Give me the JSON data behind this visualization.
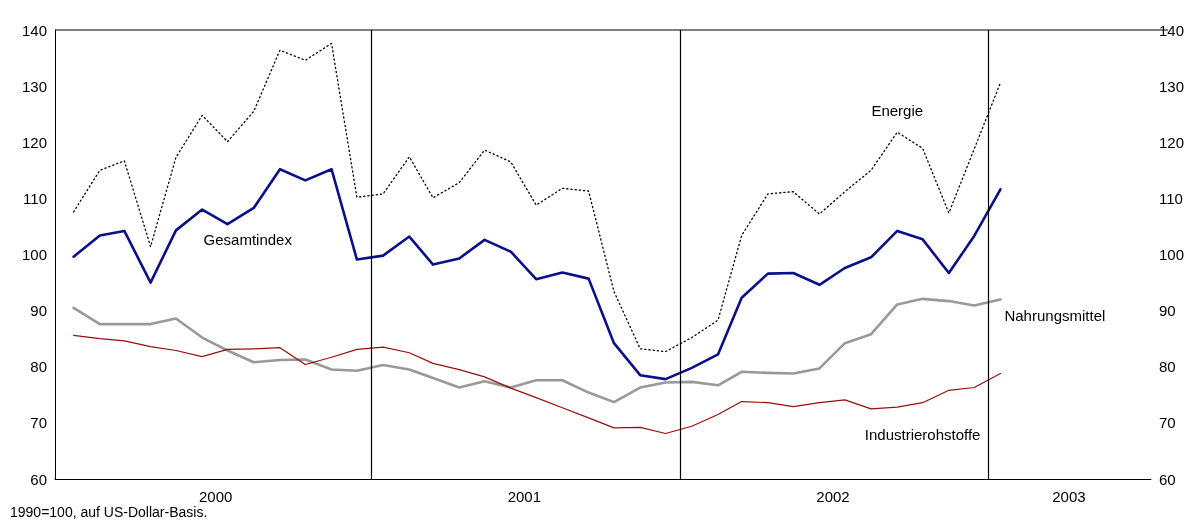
{
  "chart_data": {
    "type": "line",
    "x": [
      "2000-01-15",
      "2000-02-15",
      "2000-03-15",
      "2000-04-15",
      "2000-05-15",
      "2000-06-15",
      "2000-07-15",
      "2000-08-15",
      "2000-09-15",
      "2000-10-15",
      "2000-11-15",
      "2000-12-15",
      "2001-01-15",
      "2001-02-15",
      "2001-03-15",
      "2001-04-15",
      "2001-05-15",
      "2001-06-15",
      "2001-07-15",
      "2001-08-15",
      "2001-09-15",
      "2001-10-15",
      "2001-11-15",
      "2001-12-15",
      "2002-01-15",
      "2002-02-15",
      "2002-03-15",
      "2002-04-15",
      "2002-05-15",
      "2002-06-15",
      "2002-07-15",
      "2002-08-15",
      "2002-09-15",
      "2002-10-15",
      "2002-11-15",
      "2002-12-15",
      "2003-01-15"
    ],
    "series": [
      {
        "name": "Energie",
        "color": "#000000",
        "line_style": "dotted",
        "values": [
          107.6,
          115,
          116.7,
          101.4,
          117.3,
          124.8,
          120.1,
          125.5,
          136.4,
          134.6,
          137.6,
          110.2,
          110.8,
          117.4,
          110.1,
          112.8,
          118.6,
          116.5,
          108.8,
          111.8,
          111.3,
          93.4,
          83.2,
          82.7,
          85.2,
          88.3,
          103.4,
          110.8,
          111.2,
          107.2,
          111.2,
          115,
          121.8,
          118.9,
          107.4,
          118.8,
          130.6
        ]
      },
      {
        "name": "Gesamtindex",
        "color": "#0a0f8a",
        "values": [
          99.6,
          103.4,
          104.2,
          95,
          104.3,
          108,
          105.4,
          108.3,
          115.2,
          113.2,
          115.2,
          99.1,
          99.8,
          103.2,
          98.2,
          99.3,
          102.6,
          100.5,
          95.6,
          96.8,
          95.7,
          84.2,
          78.5,
          77.8,
          79.8,
          82.2,
          92.3,
          96.6,
          96.7,
          94.6,
          97.6,
          99.5,
          104.2,
          102.7,
          96.7,
          103.3,
          111.6
        ]
      },
      {
        "name": "Nahrungsmittel",
        "color": "#999999",
        "values": [
          90.5,
          87.6,
          87.6,
          87.6,
          88.6,
          85.2,
          82.9,
          80.8,
          81.2,
          81.3,
          79.5,
          79.3,
          80.3,
          79.5,
          78,
          76.3,
          77.4,
          76.3,
          77.6,
          77.6,
          75.4,
          73.7,
          76.3,
          77.2,
          77.3,
          76.7,
          79.1,
          78.9,
          78.8,
          79.7,
          84.2,
          85.8,
          91.1,
          92.1,
          91.7,
          90.9,
          92
        ]
      },
      {
        "name": "Industrierohstoffe",
        "color": "#9b0d0d",
        "values": [
          85.6,
          85,
          84.6,
          83.6,
          82.9,
          81.8,
          83.1,
          83.2,
          83.4,
          80.4,
          81.7,
          83.1,
          83.5,
          82.5,
          80.6,
          79.5,
          78.2,
          76.2,
          74.5,
          72.7,
          70.9,
          69.1,
          69.2,
          68.1,
          69.4,
          71.5,
          73.8,
          73.6,
          72.9,
          73.6,
          74.1,
          72.5,
          72.8,
          73.6,
          75.8,
          76.3,
          78.8
        ]
      }
    ],
    "xlim": [
      "1999-12-24",
      "2003-07-12"
    ],
    "xticks": [
      {
        "value": "2000-07-01",
        "label": "2000"
      },
      {
        "value": "2001-01-01",
        "label": null
      },
      {
        "value": "2001-07-01",
        "label": "2001"
      },
      {
        "value": "2002-01-01",
        "label": null
      },
      {
        "value": "2002-07-01",
        "label": "2002"
      },
      {
        "value": "2003-01-01",
        "label": null
      },
      {
        "value": "2003-04-06",
        "label": "2003"
      }
    ],
    "ylim": [
      60,
      140
    ],
    "yticks": [
      60,
      70,
      80,
      90,
      100,
      110,
      120,
      130,
      140
    ],
    "y2lim": [
      60,
      140
    ],
    "y2ticks": [
      60,
      70,
      80,
      90,
      100,
      110,
      120,
      130,
      140
    ],
    "grid": "x",
    "legend": false,
    "marker": "none",
    "annotations": [
      "1990=100, auf US-Dollar-Basis."
    ]
  }
}
